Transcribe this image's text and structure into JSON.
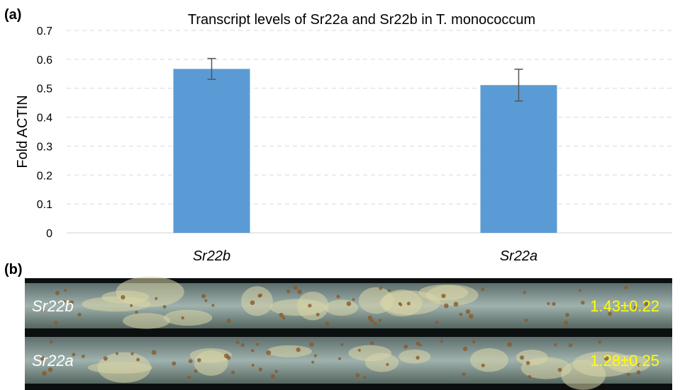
{
  "chart_data": {
    "type": "bar",
    "panel_label": "(a)",
    "title": "Transcript levels of Sr22a and Sr22b in T. monococcum",
    "y_label": "Fold ACTIN",
    "categories": [
      "Sr22b",
      "Sr22a"
    ],
    "values": [
      0.567,
      0.511
    ],
    "errors": [
      0.036,
      0.055
    ],
    "color": "#5b9bd5",
    "ylim": [
      0,
      0.7
    ],
    "yticks": [
      0,
      0.1,
      0.2,
      0.3,
      0.4,
      0.5,
      0.6,
      0.7
    ],
    "grid": true
  },
  "panel_b": {
    "label": "(b)",
    "leaves": [
      {
        "name": "Sr22b",
        "score": "1.43±0.22"
      },
      {
        "name": "Sr22a",
        "score": "1.28±0.25"
      }
    ]
  }
}
